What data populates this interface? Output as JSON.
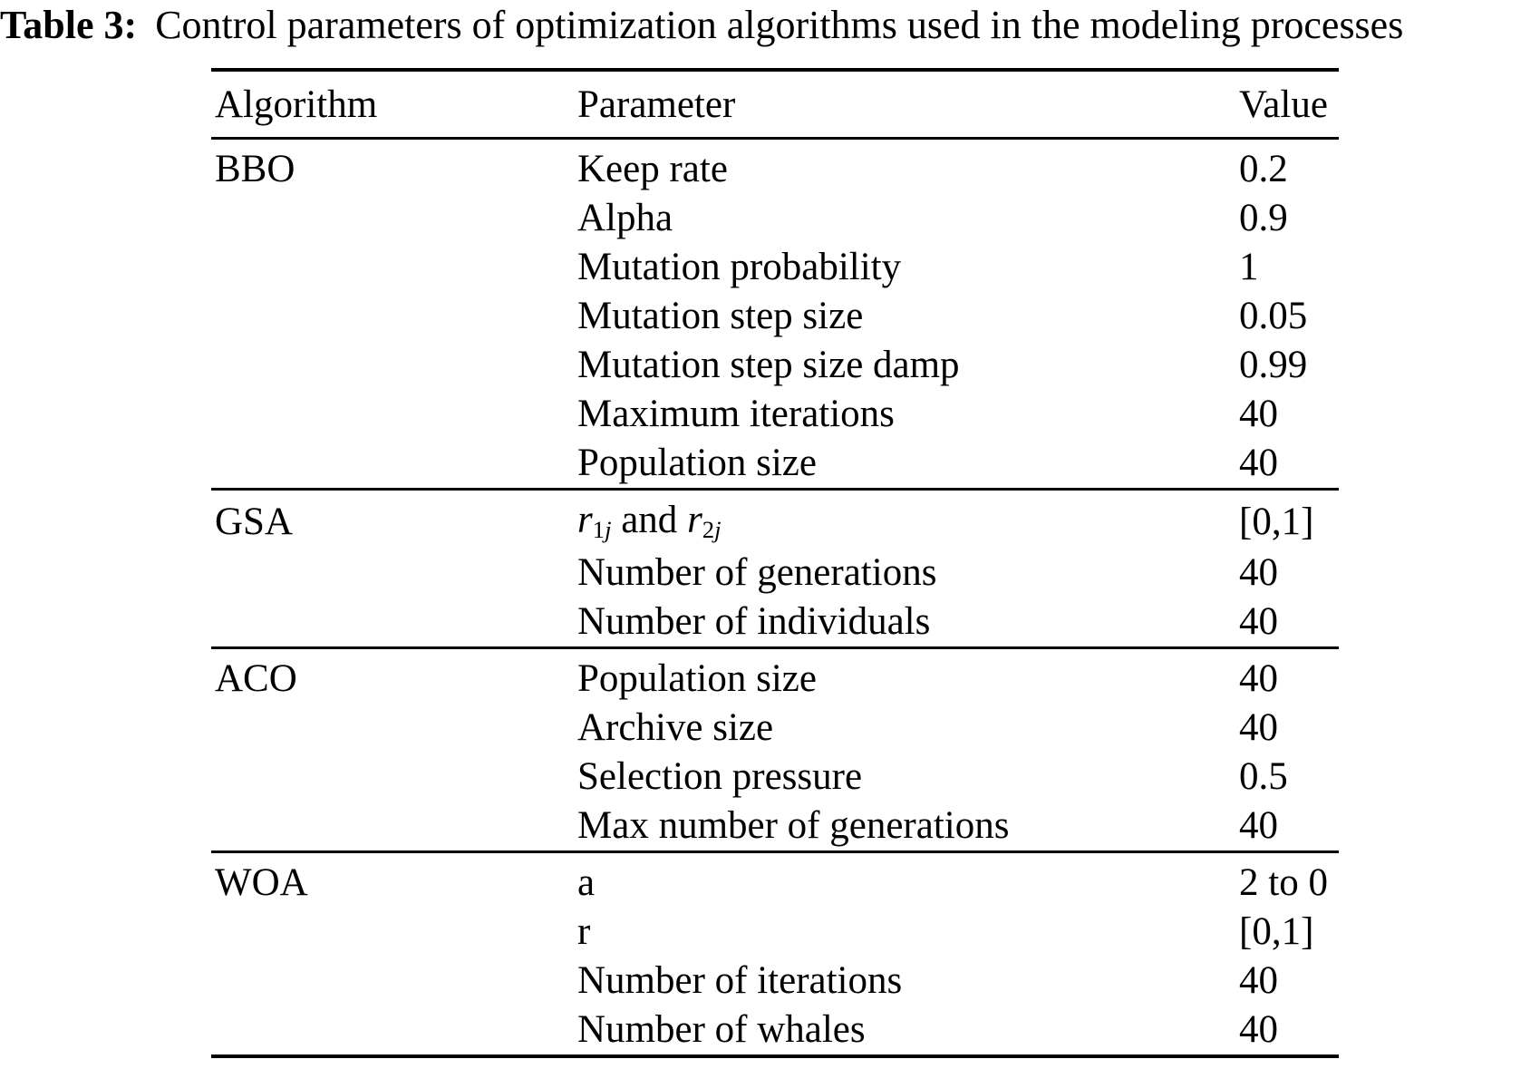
{
  "caption": {
    "label": "Table 3:",
    "text": "Control parameters of optimization algorithms used in the modeling processes"
  },
  "table": {
    "headers": [
      "Algorithm",
      "Parameter",
      "Value"
    ],
    "sections": [
      {
        "algorithm": "BBO",
        "rows": [
          {
            "parameter": "Keep rate",
            "value": "0.2"
          },
          {
            "parameter": "Alpha",
            "value": "0.9"
          },
          {
            "parameter": "Mutation probability",
            "value": "1"
          },
          {
            "parameter": "Mutation step size",
            "value": "0.05"
          },
          {
            "parameter": "Mutation step size damp",
            "value": "0.99"
          },
          {
            "parameter": "Maximum iterations",
            "value": "40"
          },
          {
            "parameter": "Population size",
            "value": "40"
          }
        ]
      },
      {
        "algorithm": "GSA",
        "rows": [
          {
            "parameter": [
              {
                "text": "r",
                "italic": true
              },
              {
                "text": "1",
                "sub": true
              },
              {
                "text": "j",
                "sub": true,
                "italic": true
              },
              {
                "text": " and "
              },
              {
                "text": "r",
                "italic": true
              },
              {
                "text": "2",
                "sub": true
              },
              {
                "text": "j",
                "sub": true,
                "italic": true
              }
            ],
            "value": "[0,1]"
          },
          {
            "parameter": "Number of generations",
            "value": "40"
          },
          {
            "parameter": "Number of individuals",
            "value": "40"
          }
        ]
      },
      {
        "algorithm": "ACO",
        "rows": [
          {
            "parameter": "Population size",
            "value": "40"
          },
          {
            "parameter": "Archive size",
            "value": "40"
          },
          {
            "parameter": "Selection pressure",
            "value": "0.5"
          },
          {
            "parameter": "Max number of generations",
            "value": "40"
          }
        ]
      },
      {
        "algorithm": "WOA",
        "rows": [
          {
            "parameter": "a",
            "value": "2 to 0"
          },
          {
            "parameter": "r",
            "value": "[0,1]"
          },
          {
            "parameter": "Number of iterations",
            "value": "40"
          },
          {
            "parameter": "Number of whales",
            "value": "40"
          }
        ]
      }
    ]
  }
}
